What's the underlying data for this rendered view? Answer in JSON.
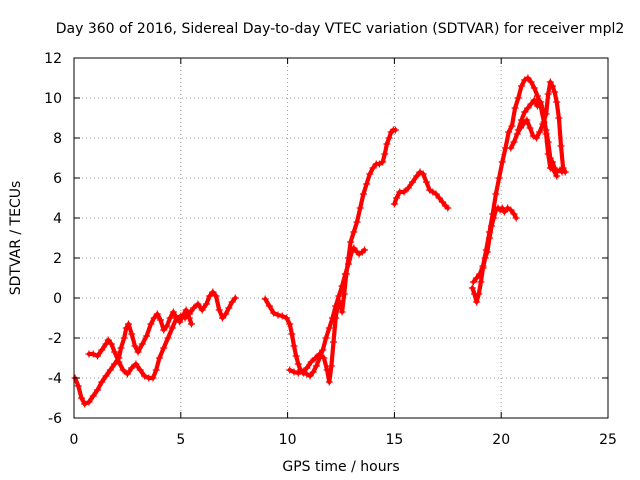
{
  "chart_data": {
    "type": "scatter",
    "title": "Day 360 of 2016, Sidereal Day-to-day VTEC variation (SDTVAR) for receiver mpl2",
    "xlabel": "GPS time / hours",
    "ylabel": "SDTVAR / TECUs",
    "xlim": [
      0,
      25
    ],
    "ylim": [
      -6,
      12
    ],
    "xticks": [
      0,
      5,
      10,
      15,
      20,
      25
    ],
    "yticks": [
      -6,
      -4,
      -2,
      0,
      2,
      4,
      6,
      8,
      10,
      12
    ],
    "xtick_labels": [
      "0",
      "5",
      "10",
      "15",
      "20",
      "25"
    ],
    "ytick_labels": [
      "-6",
      "-4",
      "-2",
      "0",
      "2",
      "4",
      "6",
      "8",
      "10",
      "12"
    ],
    "grid": true,
    "legend": false,
    "marker": "+",
    "color": "#ff0000",
    "series": [
      {
        "name": "segment-1",
        "points": [
          [
            0.05,
            -4.0
          ],
          [
            0.2,
            -4.4
          ],
          [
            0.35,
            -5.0
          ],
          [
            0.5,
            -5.3
          ],
          [
            0.7,
            -5.2
          ],
          [
            0.9,
            -4.9
          ],
          [
            1.1,
            -4.6
          ],
          [
            1.3,
            -4.2
          ],
          [
            1.5,
            -3.9
          ],
          [
            1.7,
            -3.6
          ],
          [
            1.9,
            -3.3
          ],
          [
            2.1,
            -3.0
          ],
          [
            2.2,
            -2.5
          ],
          [
            2.35,
            -2.0
          ],
          [
            2.45,
            -1.5
          ],
          [
            2.55,
            -1.3
          ],
          [
            2.7,
            -1.8
          ],
          [
            2.85,
            -2.4
          ],
          [
            3.0,
            -2.7
          ],
          [
            3.2,
            -2.3
          ],
          [
            3.4,
            -1.9
          ],
          [
            3.6,
            -1.3
          ],
          [
            3.75,
            -1.0
          ],
          [
            3.9,
            -0.8
          ],
          [
            4.05,
            -1.1
          ],
          [
            4.2,
            -1.6
          ],
          [
            4.35,
            -1.4
          ],
          [
            4.5,
            -1.0
          ],
          [
            4.65,
            -0.7
          ],
          [
            4.8,
            -1.0
          ],
          [
            4.95,
            -1.2
          ],
          [
            5.1,
            -0.9
          ],
          [
            5.25,
            -0.6
          ],
          [
            5.4,
            -1.0
          ],
          [
            5.5,
            -1.3
          ]
        ]
      },
      {
        "name": "segment-2",
        "points": [
          [
            0.7,
            -2.8
          ],
          [
            0.9,
            -2.8
          ],
          [
            1.1,
            -2.9
          ],
          [
            1.3,
            -2.6
          ],
          [
            1.5,
            -2.3
          ],
          [
            1.6,
            -2.1
          ],
          [
            1.75,
            -2.3
          ],
          [
            1.9,
            -2.7
          ],
          [
            2.1,
            -3.2
          ],
          [
            2.3,
            -3.6
          ],
          [
            2.5,
            -3.8
          ],
          [
            2.7,
            -3.5
          ],
          [
            2.9,
            -3.3
          ],
          [
            3.1,
            -3.6
          ],
          [
            3.3,
            -3.9
          ],
          [
            3.5,
            -4.0
          ],
          [
            3.7,
            -4.0
          ],
          [
            3.85,
            -3.6
          ],
          [
            4.0,
            -3.0
          ],
          [
            4.2,
            -2.5
          ],
          [
            4.4,
            -2.0
          ],
          [
            4.6,
            -1.5
          ],
          [
            4.8,
            -1.0
          ],
          [
            5.0,
            -0.9
          ],
          [
            5.2,
            -1.0
          ],
          [
            5.4,
            -0.8
          ],
          [
            5.6,
            -0.5
          ],
          [
            5.8,
            -0.3
          ],
          [
            6.0,
            -0.6
          ],
          [
            6.2,
            -0.3
          ],
          [
            6.35,
            0.1
          ],
          [
            6.5,
            0.3
          ],
          [
            6.65,
            0.1
          ],
          [
            6.8,
            -0.6
          ],
          [
            6.95,
            -1.0
          ],
          [
            7.1,
            -0.8
          ],
          [
            7.25,
            -0.5
          ],
          [
            7.4,
            -0.2
          ],
          [
            7.55,
            0.0
          ]
        ]
      },
      {
        "name": "segment-3",
        "points": [
          [
            8.95,
            -0.05
          ],
          [
            9.15,
            -0.4
          ],
          [
            9.35,
            -0.75
          ],
          [
            9.55,
            -0.85
          ],
          [
            9.75,
            -0.9
          ],
          [
            9.95,
            -1.0
          ],
          [
            10.1,
            -1.3
          ],
          [
            10.2,
            -1.8
          ],
          [
            10.3,
            -2.4
          ],
          [
            10.4,
            -2.9
          ],
          [
            10.5,
            -3.3
          ],
          [
            10.6,
            -3.6
          ],
          [
            10.75,
            -3.75
          ],
          [
            10.9,
            -3.8
          ],
          [
            11.05,
            -3.9
          ],
          [
            11.2,
            -3.7
          ],
          [
            11.35,
            -3.4
          ],
          [
            11.5,
            -3.0
          ],
          [
            11.65,
            -2.6
          ],
          [
            11.8,
            -2.0
          ],
          [
            11.95,
            -1.5
          ],
          [
            12.1,
            -1.0
          ],
          [
            12.25,
            -0.4
          ],
          [
            12.4,
            0.1
          ],
          [
            12.55,
            0.6
          ],
          [
            12.7,
            1.2
          ],
          [
            12.85,
            1.7
          ],
          [
            13.0,
            2.3
          ],
          [
            13.1,
            2.5
          ],
          [
            13.25,
            2.3
          ],
          [
            13.35,
            2.2
          ],
          [
            13.5,
            2.3
          ],
          [
            13.6,
            2.4
          ]
        ]
      },
      {
        "name": "segment-4",
        "points": [
          [
            10.1,
            -3.6
          ],
          [
            10.3,
            -3.7
          ],
          [
            10.5,
            -3.75
          ],
          [
            10.7,
            -3.7
          ],
          [
            10.9,
            -3.5
          ],
          [
            11.1,
            -3.2
          ],
          [
            11.3,
            -3.0
          ],
          [
            11.5,
            -2.8
          ],
          [
            11.7,
            -3.0
          ],
          [
            11.85,
            -3.6
          ],
          [
            11.95,
            -4.2
          ],
          [
            12.05,
            -3.4
          ],
          [
            12.15,
            -2.2
          ],
          [
            12.25,
            -1.0
          ],
          [
            12.35,
            -0.3
          ],
          [
            12.45,
            -0.2
          ],
          [
            12.55,
            -0.7
          ],
          [
            12.65,
            0.2
          ],
          [
            12.75,
            1.2
          ],
          [
            12.85,
            2.0
          ],
          [
            12.95,
            2.8
          ],
          [
            13.1,
            3.3
          ],
          [
            13.25,
            3.8
          ],
          [
            13.4,
            4.5
          ],
          [
            13.55,
            5.2
          ],
          [
            13.7,
            5.7
          ],
          [
            13.85,
            6.2
          ],
          [
            14.0,
            6.5
          ],
          [
            14.15,
            6.7
          ],
          [
            14.3,
            6.7
          ],
          [
            14.45,
            6.8
          ],
          [
            14.55,
            7.2
          ],
          [
            14.65,
            7.7
          ],
          [
            14.75,
            8.0
          ],
          [
            14.85,
            8.3
          ],
          [
            14.95,
            8.4
          ],
          [
            15.05,
            8.4
          ]
        ]
      },
      {
        "name": "segment-5",
        "points": [
          [
            15.0,
            4.7
          ],
          [
            15.1,
            5.0
          ],
          [
            15.25,
            5.3
          ],
          [
            15.45,
            5.3
          ],
          [
            15.65,
            5.5
          ],
          [
            15.85,
            5.8
          ],
          [
            16.05,
            6.1
          ],
          [
            16.2,
            6.3
          ],
          [
            16.35,
            6.2
          ],
          [
            16.5,
            5.8
          ],
          [
            16.65,
            5.4
          ],
          [
            16.8,
            5.3
          ],
          [
            16.95,
            5.2
          ],
          [
            17.1,
            5.0
          ],
          [
            17.25,
            4.8
          ],
          [
            17.4,
            4.6
          ],
          [
            17.5,
            4.5
          ]
        ]
      },
      {
        "name": "segment-6",
        "points": [
          [
            18.65,
            0.5
          ],
          [
            18.75,
            0.2
          ],
          [
            18.85,
            -0.2
          ],
          [
            18.95,
            0.2
          ],
          [
            19.05,
            0.8
          ],
          [
            19.15,
            1.5
          ],
          [
            19.25,
            2.0
          ],
          [
            19.35,
            2.3
          ],
          [
            19.45,
            3.0
          ],
          [
            19.55,
            3.6
          ],
          [
            19.65,
            4.0
          ],
          [
            19.75,
            4.4
          ],
          [
            19.85,
            4.5
          ],
          [
            19.95,
            4.4
          ],
          [
            20.05,
            4.5
          ],
          [
            20.15,
            4.3
          ],
          [
            20.3,
            4.5
          ],
          [
            20.45,
            4.4
          ],
          [
            20.6,
            4.2
          ],
          [
            20.7,
            4.0
          ]
        ]
      },
      {
        "name": "segment-7",
        "points": [
          [
            18.7,
            0.8
          ],
          [
            18.85,
            1.0
          ],
          [
            19.0,
            1.2
          ],
          [
            19.15,
            1.6
          ],
          [
            19.3,
            2.4
          ],
          [
            19.45,
            3.3
          ],
          [
            19.6,
            4.2
          ],
          [
            19.75,
            5.2
          ],
          [
            19.9,
            6.0
          ],
          [
            20.05,
            6.8
          ],
          [
            20.2,
            7.5
          ],
          [
            20.35,
            8.3
          ],
          [
            20.5,
            8.6
          ],
          [
            20.65,
            9.5
          ],
          [
            20.8,
            10.0
          ],
          [
            20.95,
            10.6
          ],
          [
            21.1,
            10.9
          ],
          [
            21.25,
            11.0
          ],
          [
            21.4,
            10.8
          ],
          [
            21.55,
            10.5
          ],
          [
            21.7,
            10.1
          ],
          [
            21.85,
            9.6
          ],
          [
            22.0,
            8.8
          ],
          [
            22.1,
            8.4
          ],
          [
            22.2,
            7.8
          ],
          [
            22.3,
            7.0
          ],
          [
            22.4,
            6.8
          ],
          [
            22.5,
            6.5
          ],
          [
            22.6,
            6.3
          ],
          [
            22.75,
            6.4
          ],
          [
            22.85,
            6.3
          ]
        ]
      },
      {
        "name": "segment-8",
        "points": [
          [
            20.45,
            7.5
          ],
          [
            20.6,
            7.8
          ],
          [
            20.75,
            8.2
          ],
          [
            20.9,
            8.5
          ],
          [
            21.05,
            8.7
          ],
          [
            21.2,
            8.9
          ],
          [
            21.35,
            8.5
          ],
          [
            21.5,
            8.1
          ],
          [
            21.65,
            8.0
          ],
          [
            21.8,
            8.3
          ],
          [
            21.95,
            8.7
          ],
          [
            22.1,
            9.2
          ],
          [
            22.2,
            10.2
          ],
          [
            22.3,
            10.8
          ],
          [
            22.4,
            10.6
          ],
          [
            22.5,
            10.3
          ],
          [
            22.6,
            9.8
          ],
          [
            22.7,
            9.0
          ],
          [
            22.8,
            7.6
          ],
          [
            22.9,
            6.5
          ],
          [
            23.0,
            6.3
          ]
        ]
      },
      {
        "name": "segment-9",
        "points": [
          [
            20.8,
            8.4
          ],
          [
            20.95,
            8.9
          ],
          [
            21.1,
            9.3
          ],
          [
            21.25,
            9.5
          ],
          [
            21.4,
            9.7
          ],
          [
            21.55,
            9.9
          ],
          [
            21.7,
            9.6
          ],
          [
            21.85,
            9.8
          ],
          [
            22.0,
            9.2
          ],
          [
            22.1,
            8.2
          ],
          [
            22.2,
            7.2
          ],
          [
            22.3,
            6.5
          ],
          [
            22.45,
            6.4
          ],
          [
            22.6,
            6.1
          ]
        ]
      }
    ]
  }
}
